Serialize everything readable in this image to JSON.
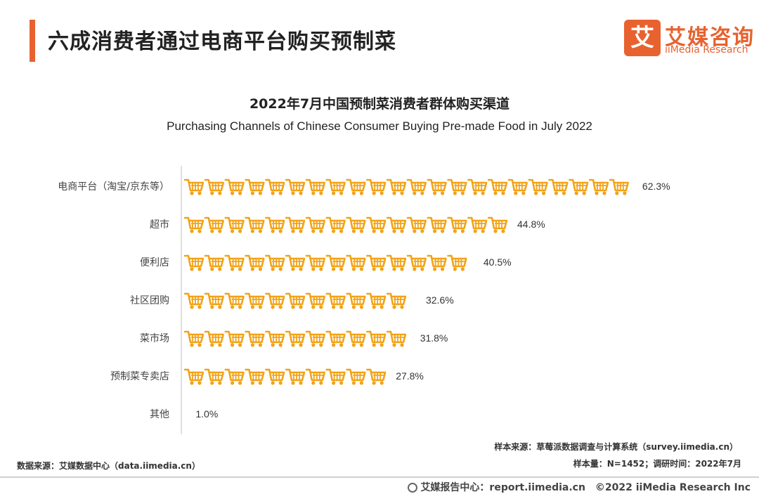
{
  "header": {
    "title": "六成消费者通过电商平台购买预制菜",
    "logo_cn": "艾媒咨询",
    "logo_en": "iiMedia Research",
    "logo_mark": "艾"
  },
  "colors": {
    "accent": "#e8622f",
    "cart": "#f2a318"
  },
  "chart_data": {
    "type": "bar",
    "title": "2022年7月中国预制菜消费者群体购买渠道",
    "subtitle": "Purchasing Channels of Chinese Consumer Buying Pre-made Food in July 2022",
    "orientation": "horizontal",
    "mark": "shopping-cart-icon",
    "categories": [
      "电商平台（淘宝/京东等）",
      "超市",
      "便利店",
      "社区团购",
      "菜市场",
      "预制菜专卖店",
      "其他"
    ],
    "values": [
      62.3,
      44.8,
      40.5,
      32.6,
      31.8,
      27.8,
      1.0
    ],
    "value_labels": [
      "62.3%",
      "44.8%",
      "40.5%",
      "32.6%",
      "31.8%",
      "27.8%",
      "1.0%"
    ],
    "unit": "%",
    "icons_per_unit_percent": 0.36
  },
  "notes": {
    "source_right": "样本来源：草莓派数据调查与计算系统（survey.iimedia.cn）",
    "sample": "样本量：N=1452；调研时间：2022年7月",
    "data_source": "数据来源：艾媒数据中心（data.iimedia.cn）"
  },
  "footer": {
    "text": "艾媒报告中心：report.iimedia.cn　©2022  iiMedia Research  Inc"
  }
}
